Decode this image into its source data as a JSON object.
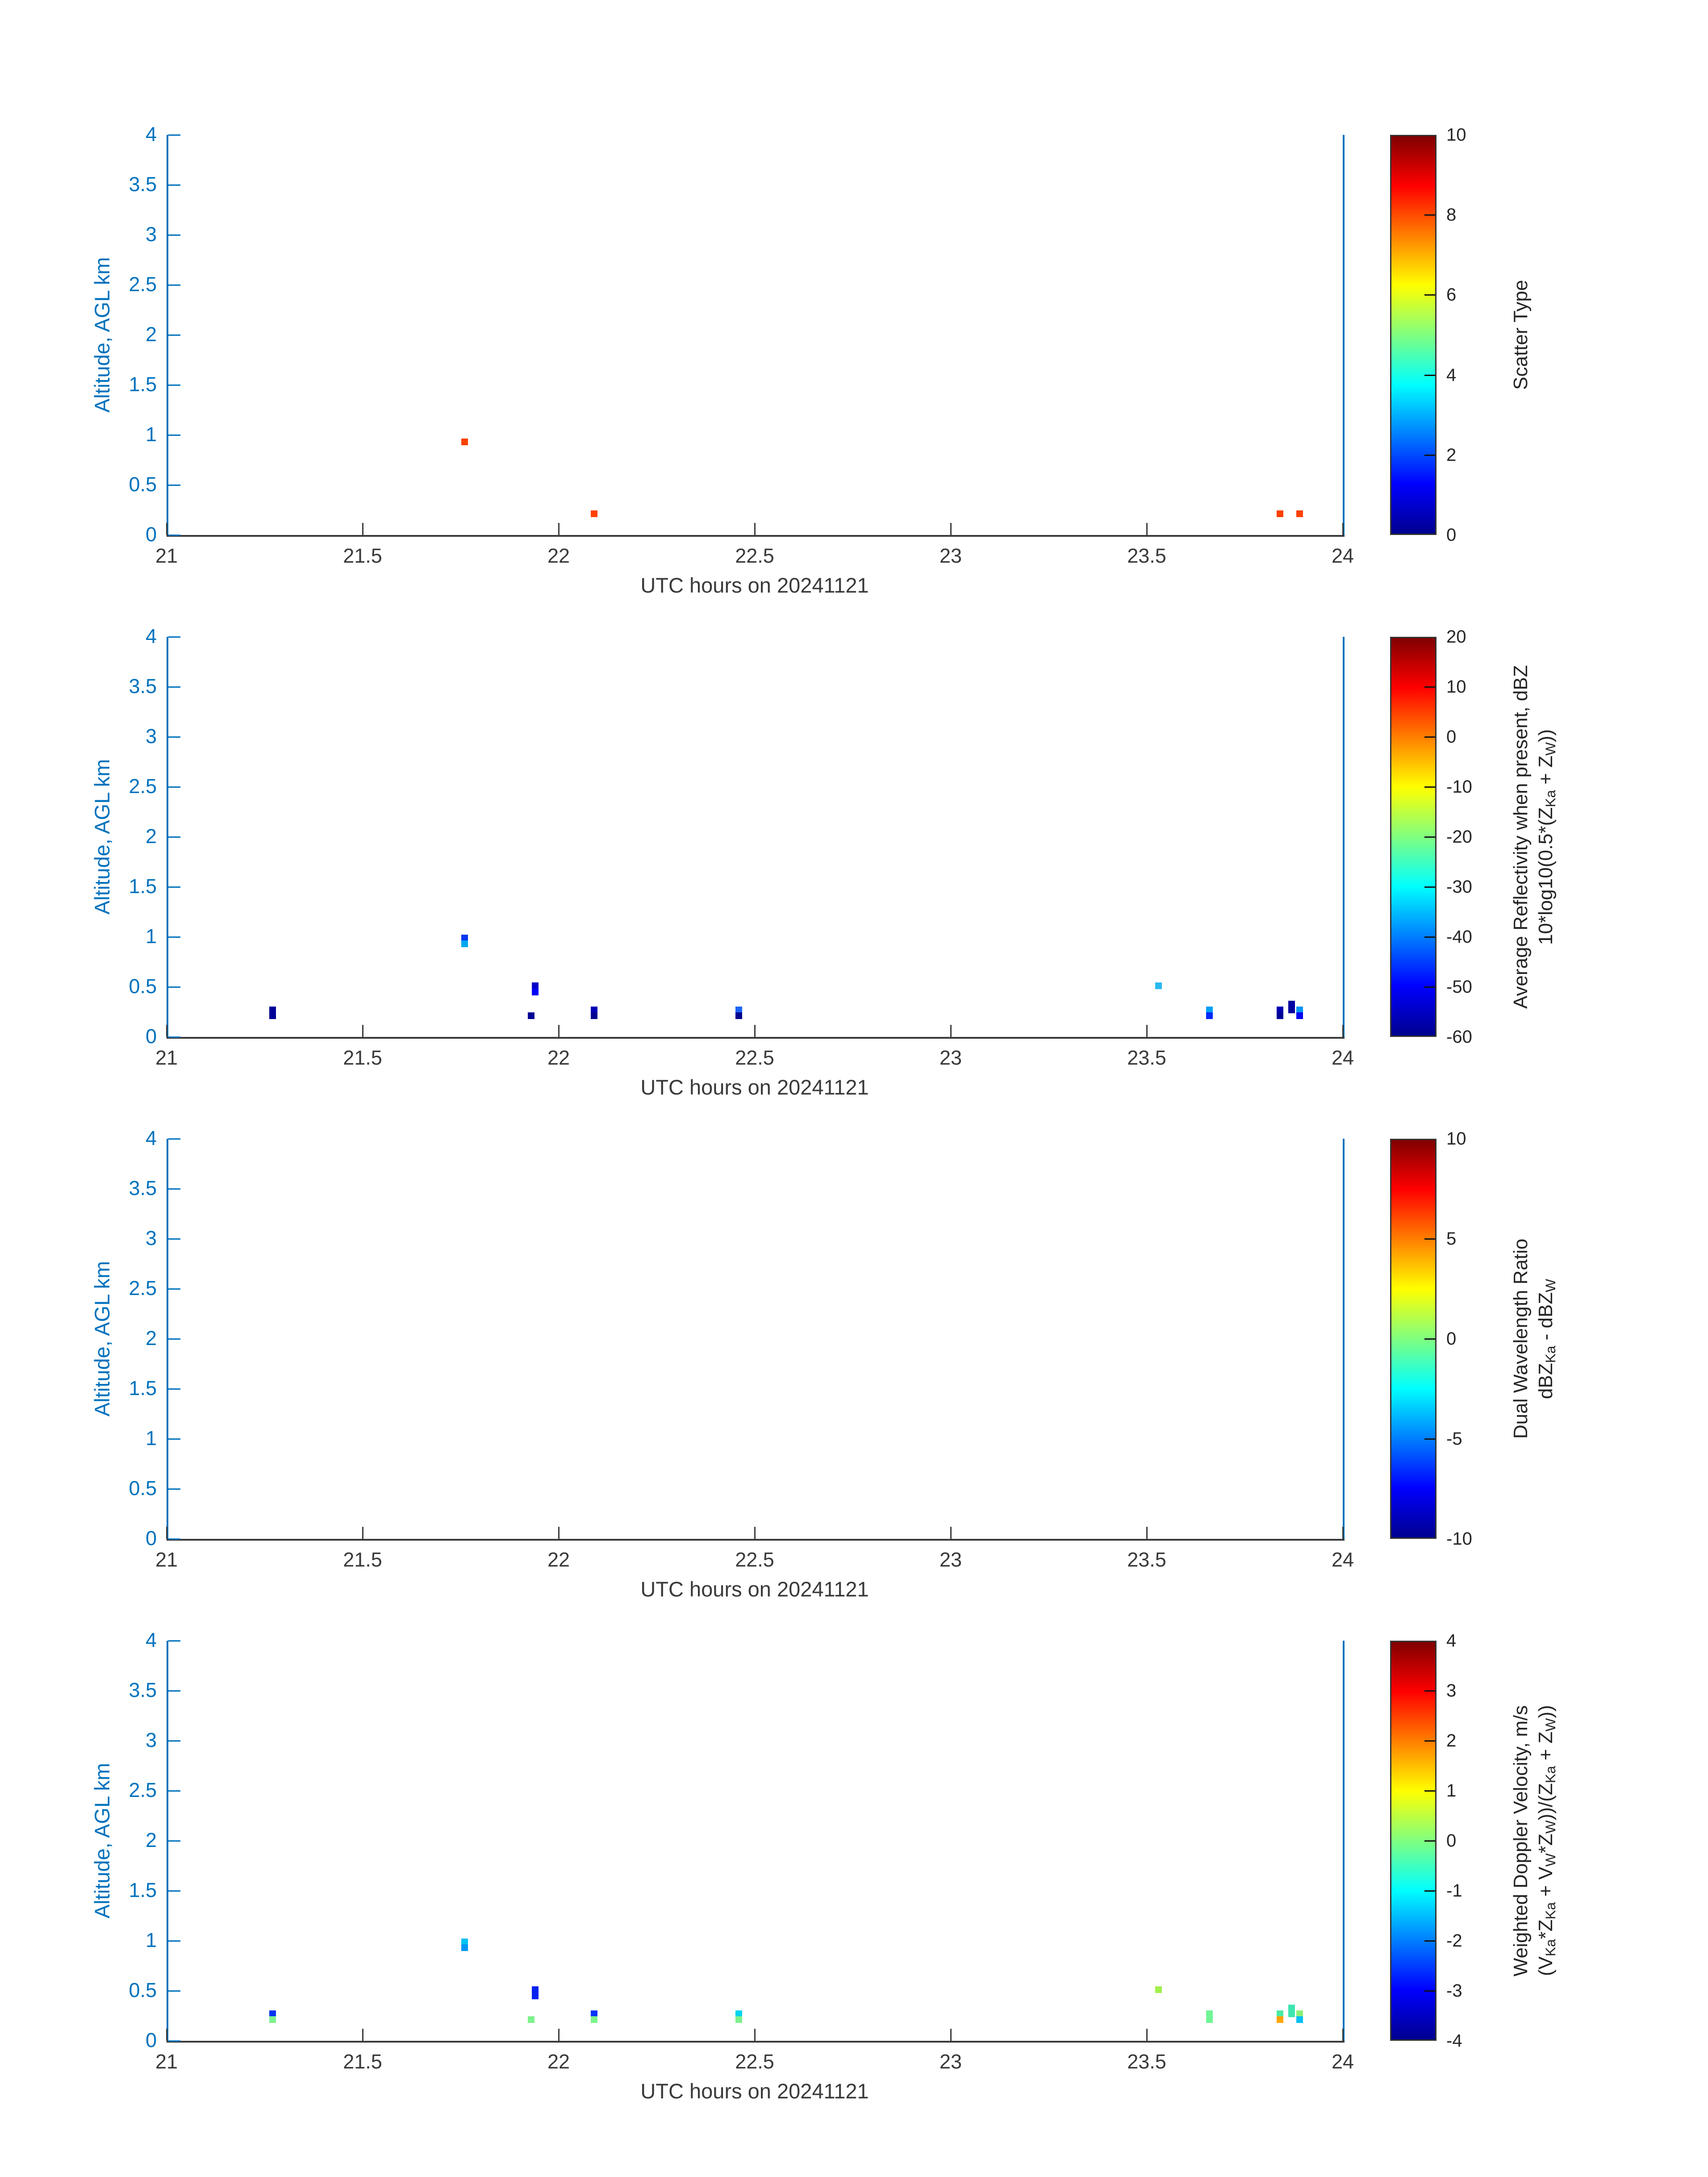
{
  "figure": {
    "background": "#FFFFFF",
    "axis_color": "#0072BD",
    "x_axis_color": "#3a3a3a",
    "x_tick_label_color": "#3a3a3a",
    "y_tick_label_color": "#0072BD",
    "colorbar_text_color": "#262626",
    "colormap_name": "jet",
    "colormap_stops": [
      "#00008F",
      "#0000FF",
      "#00FFFF",
      "#FFFF00",
      "#FF0000",
      "#800000"
    ],
    "colormap_positions": [
      0,
      12.5,
      37.5,
      62.5,
      87.5,
      100
    ]
  },
  "chart_data": [
    {
      "type": "scatter",
      "title": "",
      "xlabel": "UTC hours on 20241121",
      "ylabel": "Altitude, AGL km",
      "xlim": [
        21,
        24
      ],
      "ylim": [
        0,
        4
      ],
      "x_ticks": [
        21,
        21.5,
        22,
        22.5,
        23,
        23.5,
        24
      ],
      "y_ticks": [
        0,
        0.5,
        1,
        1.5,
        2,
        2.5,
        3,
        3.5,
        4
      ],
      "grid": false,
      "colorbar": {
        "min": 0,
        "max": 10,
        "ticks": [
          0,
          2,
          4,
          6,
          8,
          10
        ],
        "label_lines": [
          [
            {
              "t": "Scatter Type",
              "sub": false
            }
          ]
        ]
      },
      "points": [
        {
          "x": 21.76,
          "y": 0.93,
          "color": "#FF4000",
          "value": 8
        },
        {
          "x": 22.09,
          "y": 0.21,
          "color": "#FF4000",
          "value": 8
        },
        {
          "x": 23.84,
          "y": 0.21,
          "color": "#FF4000",
          "value": 8
        },
        {
          "x": 23.89,
          "y": 0.21,
          "color": "#FF4000",
          "value": 8
        }
      ]
    },
    {
      "type": "scatter",
      "title": "",
      "xlabel": "UTC hours on 20241121",
      "ylabel": "Altitude, AGL km",
      "xlim": [
        21,
        24
      ],
      "ylim": [
        0,
        4
      ],
      "x_ticks": [
        21,
        21.5,
        22,
        22.5,
        23,
        23.5,
        24
      ],
      "y_ticks": [
        0,
        0.5,
        1,
        1.5,
        2,
        2.5,
        3,
        3.5,
        4
      ],
      "grid": false,
      "colorbar": {
        "min": -60,
        "max": 20,
        "ticks": [
          -60,
          -50,
          -40,
          -30,
          -20,
          -10,
          0,
          10,
          20
        ],
        "label_lines": [
          [
            {
              "t": "Average Reflectivity when present, dBZ",
              "sub": false
            }
          ],
          [
            {
              "t": "10*log10(0.5*(Z",
              "sub": false
            },
            {
              "t": "Ka",
              "sub": true
            },
            {
              "t": " + Z",
              "sub": false
            },
            {
              "t": "W",
              "sub": true
            },
            {
              "t": "))",
              "sub": false
            }
          ]
        ]
      },
      "points": [
        {
          "x": 21.27,
          "y": 0.27,
          "color": "#000096",
          "value": -56
        },
        {
          "x": 21.27,
          "y": 0.21,
          "color": "#000096",
          "value": -56
        },
        {
          "x": 21.76,
          "y": 0.99,
          "color": "#0535F0",
          "value": -50
        },
        {
          "x": 21.76,
          "y": 0.93,
          "color": "#00A8F0",
          "value": -42
        },
        {
          "x": 21.93,
          "y": 0.21,
          "color": "#000096",
          "value": -56
        },
        {
          "x": 21.94,
          "y": 0.51,
          "color": "#0000C8",
          "value": -53
        },
        {
          "x": 21.94,
          "y": 0.45,
          "color": "#0000FA",
          "value": -51
        },
        {
          "x": 22.09,
          "y": 0.27,
          "color": "#0000B4",
          "value": -54
        },
        {
          "x": 22.09,
          "y": 0.21,
          "color": "#000090",
          "value": -56
        },
        {
          "x": 22.46,
          "y": 0.27,
          "color": "#1C64F8",
          "value": -47
        },
        {
          "x": 22.46,
          "y": 0.21,
          "color": "#000090",
          "value": -56
        },
        {
          "x": 23.53,
          "y": 0.51,
          "color": "#29B9F0",
          "value": -41
        },
        {
          "x": 23.66,
          "y": 0.27,
          "color": "#00A0F5",
          "value": -43
        },
        {
          "x": 23.66,
          "y": 0.21,
          "color": "#0028FA",
          "value": -51
        },
        {
          "x": 23.84,
          "y": 0.27,
          "color": "#0000B4",
          "value": -54
        },
        {
          "x": 23.84,
          "y": 0.21,
          "color": "#000096",
          "value": -56
        },
        {
          "x": 23.87,
          "y": 0.33,
          "color": "#0000A0",
          "value": -55
        },
        {
          "x": 23.87,
          "y": 0.27,
          "color": "#0000A0",
          "value": -55
        },
        {
          "x": 23.89,
          "y": 0.27,
          "color": "#0095F8",
          "value": -44
        },
        {
          "x": 23.89,
          "y": 0.21,
          "color": "#0000F5",
          "value": -51
        }
      ]
    },
    {
      "type": "scatter",
      "title": "",
      "xlabel": "UTC hours on 20241121",
      "ylabel": "Altitude, AGL km",
      "xlim": [
        21,
        24
      ],
      "ylim": [
        0,
        4
      ],
      "x_ticks": [
        21,
        21.5,
        22,
        22.5,
        23,
        23.5,
        24
      ],
      "y_ticks": [
        0,
        0.5,
        1,
        1.5,
        2,
        2.5,
        3,
        3.5,
        4
      ],
      "grid": false,
      "colorbar": {
        "min": -10,
        "max": 10,
        "ticks": [
          -10,
          -5,
          0,
          5,
          10
        ],
        "label_lines": [
          [
            {
              "t": "Dual Wavelength Ratio",
              "sub": false
            }
          ],
          [
            {
              "t": "dBZ",
              "sub": false
            },
            {
              "t": "Ka",
              "sub": true
            },
            {
              "t": " - dBZ",
              "sub": false
            },
            {
              "t": "W",
              "sub": true
            }
          ]
        ]
      },
      "points": []
    },
    {
      "type": "scatter",
      "title": "",
      "xlabel": "UTC hours on 20241121",
      "ylabel": "Altitude, AGL km",
      "xlim": [
        21,
        24
      ],
      "ylim": [
        0,
        4
      ],
      "x_ticks": [
        21,
        21.5,
        22,
        22.5,
        23,
        23.5,
        24
      ],
      "y_ticks": [
        0,
        0.5,
        1,
        1.5,
        2,
        2.5,
        3,
        3.5,
        4
      ],
      "grid": false,
      "colorbar": {
        "min": -4,
        "max": 4,
        "ticks": [
          -4,
          -3,
          -2,
          -1,
          0,
          1,
          2,
          3,
          4
        ],
        "label_lines": [
          [
            {
              "t": "Weighted Doppler Velocity, m/s",
              "sub": false
            }
          ],
          [
            {
              "t": "(V",
              "sub": false
            },
            {
              "t": "Ka",
              "sub": true
            },
            {
              "t": "*Z",
              "sub": false
            },
            {
              "t": "Ka",
              "sub": true
            },
            {
              "t": " + V",
              "sub": false
            },
            {
              "t": "W",
              "sub": true
            },
            {
              "t": "*Z",
              "sub": false
            },
            {
              "t": "W",
              "sub": true
            },
            {
              "t": "))/(Z",
              "sub": false
            },
            {
              "t": "Ka",
              "sub": true
            },
            {
              "t": " + Z",
              "sub": false
            },
            {
              "t": "W",
              "sub": true
            },
            {
              "t": "))",
              "sub": false
            }
          ]
        ]
      },
      "points": [
        {
          "x": 21.27,
          "y": 0.27,
          "color": "#0533F0",
          "value": -3.0
        },
        {
          "x": 21.27,
          "y": 0.21,
          "color": "#7DF28C",
          "value": 0.3
        },
        {
          "x": 21.76,
          "y": 0.99,
          "color": "#00C3F0",
          "value": -1.8
        },
        {
          "x": 21.76,
          "y": 0.93,
          "color": "#0096F5",
          "value": -2.2
        },
        {
          "x": 21.93,
          "y": 0.21,
          "color": "#7DF28C",
          "value": 0.3
        },
        {
          "x": 21.94,
          "y": 0.51,
          "color": "#0522F0",
          "value": -3.1
        },
        {
          "x": 21.94,
          "y": 0.45,
          "color": "#0522F0",
          "value": -3.1
        },
        {
          "x": 22.09,
          "y": 0.27,
          "color": "#0533F8",
          "value": -3.0
        },
        {
          "x": 22.09,
          "y": 0.21,
          "color": "#7DF28C",
          "value": 0.3
        },
        {
          "x": 22.46,
          "y": 0.27,
          "color": "#00D3F0",
          "value": -1.6
        },
        {
          "x": 22.46,
          "y": 0.21,
          "color": "#7DF28C",
          "value": 0.3
        },
        {
          "x": 23.53,
          "y": 0.51,
          "color": "#A3F04D",
          "value": 0.9
        },
        {
          "x": 23.66,
          "y": 0.27,
          "color": "#70F596",
          "value": 0.2
        },
        {
          "x": 23.66,
          "y": 0.21,
          "color": "#70F596",
          "value": 0.2
        },
        {
          "x": 23.84,
          "y": 0.27,
          "color": "#4DEBA3",
          "value": -0.1
        },
        {
          "x": 23.84,
          "y": 0.21,
          "color": "#FFA500",
          "value": 2.2
        },
        {
          "x": 23.87,
          "y": 0.33,
          "color": "#3DE6B0",
          "value": -0.3
        },
        {
          "x": 23.87,
          "y": 0.27,
          "color": "#3DE6B0",
          "value": -0.3
        },
        {
          "x": 23.89,
          "y": 0.27,
          "color": "#8CF07A",
          "value": 0.5
        },
        {
          "x": 23.89,
          "y": 0.21,
          "color": "#00BFF5",
          "value": -1.9
        }
      ]
    }
  ]
}
